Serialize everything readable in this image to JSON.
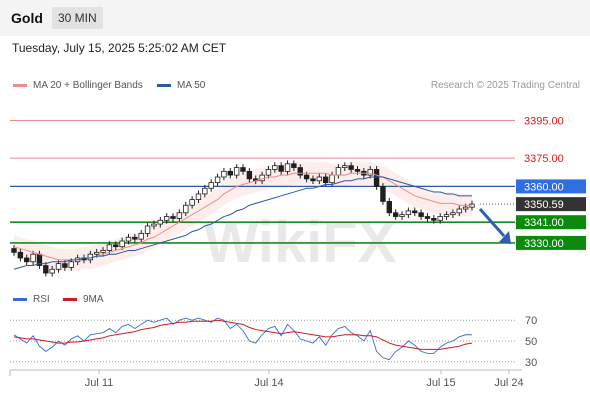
{
  "header": {
    "title": "Gold",
    "timeframe": "30 MIN"
  },
  "datetime": "Tuesday, July 15, 2025 5:25:02 AM CET",
  "legend": {
    "ma20": {
      "label": "MA 20 + Bollinger Bands",
      "color": "#f08a8a"
    },
    "ma50": {
      "label": "MA 50",
      "color": "#2c5aa0"
    },
    "rsi": {
      "label": "RSI",
      "color": "#3b6bd6"
    },
    "ma9": {
      "label": "9MA",
      "color": "#d01c1c"
    }
  },
  "credit": "Research © 2025 Trading Central",
  "watermark": "WikiFX",
  "chart_data": {
    "type": "candlestick",
    "x_ticks": [
      "Jul 11",
      "Jul 14",
      "Jul 15",
      "Jul 24"
    ],
    "price_levels": [
      {
        "label": "3395.00",
        "value": 3395,
        "kind": "resistance"
      },
      {
        "label": "3375.00",
        "value": 3375,
        "kind": "resistance"
      },
      {
        "label": "3360.00",
        "value": 3360,
        "kind": "pivot"
      },
      {
        "label": "3350.59",
        "value": 3350.59,
        "kind": "last"
      },
      {
        "label": "3341.00",
        "value": 3341,
        "kind": "support"
      },
      {
        "label": "3330.00",
        "value": 3330,
        "kind": "support"
      }
    ],
    "y_range": [
      3305,
      3408
    ],
    "closes": [
      3325,
      3322,
      3320,
      3324,
      3318,
      3314,
      3316,
      3319,
      3317,
      3320,
      3322,
      3321,
      3324,
      3325,
      3326,
      3329,
      3328,
      3331,
      3333,
      3332,
      3335,
      3339,
      3340,
      3342,
      3344,
      3343,
      3346,
      3350,
      3353,
      3356,
      3359,
      3362,
      3365,
      3368,
      3366,
      3370,
      3368,
      3364,
      3363,
      3366,
      3369,
      3371,
      3368,
      3372,
      3370,
      3366,
      3364,
      3363,
      3365,
      3362,
      3366,
      3370,
      3371,
      3369,
      3368,
      3366,
      3369,
      3360,
      3352,
      3346,
      3344,
      3345,
      3347,
      3346,
      3344,
      3343,
      3342,
      3344,
      3345,
      3346,
      3348,
      3349,
      3350.6
    ],
    "ma20": [
      3328,
      3327,
      3326,
      3325,
      3324,
      3323,
      3322,
      3321,
      3321,
      3321,
      3321,
      3322,
      3322,
      3323,
      3324,
      3325,
      3326,
      3327,
      3328,
      3329,
      3330,
      3332,
      3333,
      3335,
      3337,
      3339,
      3341,
      3343,
      3345,
      3347,
      3349,
      3351,
      3353,
      3356,
      3358,
      3360,
      3361,
      3362,
      3363,
      3364,
      3365,
      3365,
      3366,
      3366,
      3367,
      3367,
      3367,
      3367,
      3367,
      3367,
      3366,
      3366,
      3366,
      3367,
      3367,
      3367,
      3367,
      3366,
      3365,
      3363,
      3361,
      3359,
      3357,
      3355,
      3354,
      3353,
      3352,
      3351,
      3351,
      3351,
      3350,
      3350,
      3350
    ],
    "ma50": [
      3316,
      3317,
      3318,
      3318,
      3319,
      3319,
      3320,
      3320,
      3320,
      3321,
      3321,
      3322,
      3322,
      3323,
      3323,
      3324,
      3324,
      3325,
      3326,
      3326,
      3327,
      3328,
      3329,
      3330,
      3331,
      3332,
      3333,
      3334,
      3336,
      3337,
      3339,
      3340,
      3342,
      3344,
      3345,
      3347,
      3348,
      3350,
      3351,
      3352,
      3353,
      3354,
      3355,
      3356,
      3357,
      3358,
      3359,
      3359,
      3360,
      3361,
      3361,
      3362,
      3363,
      3363,
      3364,
      3364,
      3365,
      3365,
      3365,
      3364,
      3363,
      3362,
      3361,
      3360,
      3359,
      3358,
      3357,
      3357,
      3356,
      3356,
      3355,
      3355,
      3355
    ],
    "band_width": 6,
    "rsi": {
      "ticks": [
        "70",
        "50",
        "30"
      ],
      "range": [
        25,
        75
      ],
      "values": [
        56,
        52,
        48,
        55,
        45,
        40,
        44,
        50,
        46,
        52,
        55,
        50,
        56,
        57,
        58,
        62,
        58,
        64,
        66,
        62,
        66,
        70,
        68,
        70,
        72,
        66,
        70,
        72,
        70,
        72,
        70,
        68,
        72,
        70,
        62,
        66,
        60,
        50,
        48,
        56,
        62,
        64,
        55,
        66,
        60,
        52,
        50,
        48,
        54,
        46,
        56,
        62,
        64,
        58,
        55,
        50,
        60,
        40,
        34,
        32,
        40,
        44,
        50,
        46,
        40,
        38,
        38,
        44,
        48,
        50,
        54,
        56,
        56
      ],
      "ma9": [
        54,
        53,
        52,
        52,
        51,
        50,
        49,
        48,
        48,
        49,
        49,
        50,
        51,
        52,
        53,
        55,
        56,
        57,
        58,
        59,
        61,
        62,
        63,
        65,
        66,
        67,
        68,
        68,
        69,
        69,
        69,
        69,
        70,
        69,
        68,
        67,
        66,
        63,
        61,
        60,
        59,
        58,
        57,
        58,
        59,
        58,
        57,
        56,
        55,
        54,
        54,
        55,
        56,
        56,
        56,
        55,
        55,
        54,
        51,
        48,
        46,
        45,
        44,
        43,
        42,
        42,
        42,
        42,
        43,
        44,
        45,
        47,
        48
      ]
    }
  }
}
